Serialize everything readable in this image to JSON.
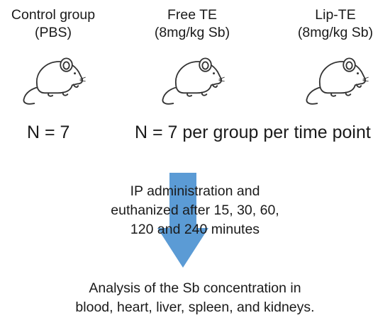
{
  "groups": [
    {
      "line1": "Control group",
      "line2": "(PBS)"
    },
    {
      "line1": "Free TE",
      "line2": "(8mg/kg Sb)"
    },
    {
      "line1": "Lip-TE",
      "line2": "(8mg/kg Sb)"
    }
  ],
  "counts": {
    "control": "N = 7",
    "treated": "N = 7 per group per time point"
  },
  "procedure": {
    "line1": "IP administration and",
    "line2": "euthanized after 15, 30, 60,",
    "line3": "120 and 240 minutes"
  },
  "analysis": {
    "line1": "Analysis of the Sb concentration in",
    "line2": "blood, heart, liver, spleen, and kidneys."
  },
  "colors": {
    "arrow": "#5b9bd5",
    "text": "#1a1a1a",
    "mouse_outline": "#333333"
  },
  "icons": [
    "mouse-icon",
    "down-arrow-icon"
  ]
}
